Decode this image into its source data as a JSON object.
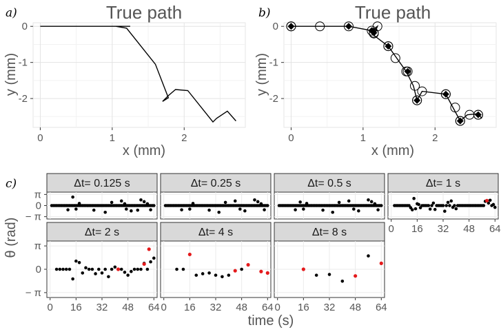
{
  "figure": {
    "tags": {
      "a": "a)",
      "b": "b)",
      "c": "c)"
    }
  },
  "chart_data": [
    {
      "type": "line",
      "title": "True path",
      "xlabel": "x (mm)",
      "ylabel": "y (mm)",
      "xlim": [
        -0.1,
        2.85
      ],
      "ylim": [
        -2.8,
        0.1
      ],
      "xticks": [
        0,
        1,
        2
      ],
      "yticks": [
        0,
        -1,
        -2
      ],
      "xtick_labels": [
        "0",
        "1",
        "2"
      ],
      "ytick_labels": [
        "0",
        "-1",
        "-2"
      ],
      "grid": true,
      "path": {
        "x": [
          0,
          1.0,
          1.25,
          1.05,
          1.2,
          1.6,
          1.78,
          1.7,
          1.78,
          1.88,
          2.05,
          2.4,
          2.45,
          2.6,
          2.72
        ],
        "y": [
          0,
          0,
          0,
          0,
          -0.05,
          -1.05,
          -1.98,
          -2.08,
          -1.92,
          -1.75,
          -1.78,
          -2.65,
          -2.55,
          -2.35,
          -2.62
        ]
      }
    },
    {
      "type": "line",
      "title": "True path",
      "xlabel": "x (mm)",
      "ylabel": "y (mm)",
      "xlim": [
        -0.1,
        2.85
      ],
      "ylim": [
        -2.8,
        0.1
      ],
      "xticks": [
        0,
        1,
        2
      ],
      "yticks": [
        0,
        -1,
        -2
      ],
      "xtick_labels": [
        "0",
        "1",
        "2"
      ],
      "ytick_labels": [
        "0",
        "-1",
        "-2"
      ],
      "grid": true,
      "path": {
        "x": [
          0,
          0.8,
          1.12,
          1.2,
          1.15,
          1.35,
          1.6,
          1.7,
          1.75,
          1.82,
          2.15,
          2.35,
          2.45,
          2.6,
          2.65
        ],
        "y": [
          0,
          0,
          -0.12,
          0,
          -0.25,
          -0.55,
          -1.25,
          -1.65,
          -2.05,
          -1.8,
          -1.88,
          -2.62,
          -2.45,
          -2.42,
          -2.55
        ]
      },
      "open_markers": {
        "x": [
          0,
          0.4,
          1.15,
          1.2,
          1.35,
          1.45,
          1.6,
          1.72,
          1.75,
          1.82,
          2.15,
          2.28,
          2.35,
          2.48,
          2.6
        ],
        "y": [
          0,
          0,
          -0.2,
          0,
          -0.55,
          -0.88,
          -1.25,
          -1.65,
          -2.05,
          -1.8,
          -1.88,
          -2.25,
          -2.62,
          -2.45,
          -2.45
        ]
      },
      "filled_markers": {
        "x": [
          0,
          0.8,
          1.12,
          1.15,
          1.35,
          1.62,
          1.75,
          2.15,
          2.35,
          2.6
        ],
        "y": [
          0,
          0,
          -0.12,
          -0.18,
          -0.55,
          -1.25,
          -2.05,
          -1.88,
          -2.62,
          -2.45
        ]
      }
    },
    {
      "type": "scatter",
      "ylabel": "θ (rad)",
      "xlabel": "time (s)",
      "xlim": [
        -2,
        66
      ],
      "ylim": [
        -3.8,
        3.8
      ],
      "xticks": [
        0,
        16,
        32,
        48,
        64
      ],
      "xtick_labels": [
        "0",
        "16",
        "32",
        "48",
        "64"
      ],
      "yticks": [
        3.14159,
        0,
        -3.14159
      ],
      "ytick_labels": [
        "π",
        "0",
        "− π"
      ],
      "facets": [
        {
          "label": "Δt= 0.125 s",
          "black": {
            "x": [
              1,
              2,
              3,
              4,
              5,
              6,
              7,
              8,
              9,
              10,
              11,
              12,
              13,
              14,
              15,
              16,
              17,
              18,
              19,
              20,
              21,
              22,
              23,
              24,
              25,
              26,
              27,
              28,
              29,
              30,
              31,
              32,
              33,
              34,
              35,
              36,
              37,
              38,
              39,
              40,
              41,
              42,
              43,
              44,
              45,
              46,
              47,
              48,
              49,
              50,
              51,
              52,
              53,
              54,
              55,
              56,
              57,
              58,
              59,
              60,
              61,
              62,
              63,
              64,
              11,
              14,
              16,
              18,
              27,
              34,
              38,
              44,
              46,
              47,
              50,
              54,
              56,
              58,
              60,
              62
            ],
            "y": [
              0,
              0,
              0,
              0,
              0,
              0,
              0,
              0,
              0,
              0,
              0,
              0,
              0,
              0,
              0,
              0,
              0,
              0,
              0,
              0,
              0,
              0,
              0,
              0,
              0,
              0,
              0,
              0,
              0,
              0,
              0,
              0,
              0,
              0,
              0,
              0,
              0,
              0,
              0,
              0,
              0,
              0,
              0,
              0,
              0,
              0,
              0,
              0,
              0,
              0,
              0,
              0,
              0,
              0,
              0,
              0,
              0,
              0,
              0,
              0,
              0,
              0,
              0,
              0,
              -1.2,
              2.4,
              -1.0,
              0.6,
              -1.3,
              -1.9,
              0.9,
              1.3,
              0.5,
              -1.0,
              -1.5,
              -1.3,
              1.6,
              1.1,
              0.5,
              -1.2
            ]
          },
          "red": {
            "x": [],
            "y": []
          }
        },
        {
          "label": "Δt= 0.25 s",
          "black": {
            "x": [
              1,
              2,
              3,
              4,
              5,
              6,
              7,
              8,
              9,
              10,
              11,
              12,
              13,
              14,
              15,
              16,
              17,
              18,
              19,
              20,
              21,
              22,
              23,
              24,
              25,
              26,
              27,
              28,
              29,
              30,
              31,
              32,
              33,
              34,
              35,
              36,
              37,
              38,
              39,
              40,
              41,
              42,
              43,
              44,
              45,
              46,
              47,
              48,
              49,
              50,
              51,
              52,
              53,
              54,
              55,
              56,
              57,
              58,
              59,
              60,
              61,
              62,
              63,
              64,
              11,
              16,
              18,
              28,
              34,
              38,
              44,
              47,
              50,
              56,
              58,
              60,
              62
            ],
            "y": [
              0,
              0,
              0,
              0,
              0,
              0,
              0,
              0,
              0,
              0,
              0,
              0,
              0,
              0,
              0,
              0,
              0,
              0,
              0,
              0,
              0,
              0,
              0,
              0,
              0,
              0,
              0,
              0,
              0,
              0,
              0,
              0,
              0,
              0,
              0,
              0,
              0,
              0,
              0,
              0,
              0,
              0,
              0,
              0,
              0,
              0,
              0,
              0,
              0,
              0,
              0,
              0,
              0,
              0,
              0,
              0,
              0,
              0,
              0,
              0,
              0,
              0,
              0,
              0,
              -1.2,
              -1.0,
              0.6,
              -1.3,
              -1.9,
              0.9,
              1.3,
              -1.0,
              -1.5,
              1.6,
              1.1,
              0.5,
              -1.2
            ]
          },
          "red": {
            "x": [],
            "y": []
          }
        },
        {
          "label": "Δt= 0.5 s",
          "black": {
            "x": [
              1,
              2,
              3,
              4,
              5,
              6,
              7,
              8,
              9,
              10,
              11,
              12,
              13,
              14,
              15,
              16,
              17,
              18,
              19,
              20,
              21,
              22,
              23,
              24,
              25,
              26,
              27,
              28,
              29,
              30,
              31,
              32,
              33,
              34,
              35,
              36,
              37,
              38,
              39,
              40,
              41,
              42,
              43,
              44,
              45,
              46,
              47,
              48,
              49,
              50,
              51,
              52,
              53,
              54,
              55,
              56,
              57,
              58,
              59,
              60,
              61,
              62,
              63,
              64,
              11,
              14,
              16,
              18,
              28,
              34,
              38,
              44,
              47,
              50,
              56,
              58,
              60,
              62
            ],
            "y": [
              0,
              0,
              0,
              0,
              0,
              0,
              0,
              0,
              0,
              0,
              0,
              0,
              0,
              0,
              0,
              0,
              0,
              0,
              0,
              0,
              0,
              0,
              0,
              0,
              0,
              0,
              0,
              0,
              0,
              0,
              0,
              0,
              0,
              0,
              0,
              0,
              0,
              0,
              0,
              0,
              0,
              0,
              0,
              0,
              0,
              0,
              0,
              0,
              0,
              0,
              0,
              0,
              0,
              0,
              0,
              0,
              0,
              0,
              0,
              0,
              0,
              0,
              0,
              0,
              -1.2,
              1.0,
              -1.0,
              0.6,
              -1.3,
              -1.9,
              0.9,
              1.3,
              -1.0,
              -1.5,
              1.6,
              1.1,
              0.5,
              -1.2
            ]
          },
          "red": {
            "x": [],
            "y": []
          }
        },
        {
          "label": "Δt= 1 s",
          "black": {
            "x": [
              2,
              3,
              4,
              5,
              6,
              7,
              8,
              9,
              10,
              11,
              12,
              13,
              14,
              15,
              16,
              17,
              18,
              19,
              20,
              21,
              22,
              23,
              24,
              25,
              26,
              27,
              28,
              29,
              30,
              31,
              32,
              33,
              34,
              35,
              36,
              37,
              38,
              39,
              40,
              41,
              42,
              43,
              44,
              45,
              46,
              47,
              48,
              49,
              50,
              51,
              52,
              53,
              54,
              55,
              56,
              57,
              58,
              60,
              61,
              62,
              63,
              64
            ],
            "y": [
              0,
              0,
              0,
              0,
              0,
              0,
              0,
              0,
              0,
              0,
              -0.6,
              -1.2,
              2.0,
              -0.9,
              0.5,
              0.3,
              -0.6,
              0,
              0,
              0,
              0,
              0,
              -1.0,
              0,
              0.7,
              -1.1,
              0,
              0,
              0,
              0,
              0,
              -1.6,
              0,
              0.9,
              0,
              1.3,
              -0.5,
              0,
              -0.9,
              0,
              0,
              0,
              0,
              0,
              0,
              0,
              0,
              0,
              0,
              0,
              0,
              0,
              0,
              0,
              0,
              0,
              1.2,
              0.7,
              1.5,
              0,
              0.3,
              -0.5
            ]
          },
          "red": {
            "x": [
              59
            ],
            "y": [
              1.4
            ]
          }
        },
        {
          "label": "Δt= 2 s",
          "black": {
            "x": [
              4,
              6,
              8,
              10,
              12,
              14,
              16,
              18,
              20,
              22,
              24,
              26,
              28,
              30,
              32,
              34,
              36,
              38,
              40,
              44,
              46,
              48,
              50,
              52,
              54,
              56,
              58,
              60,
              62,
              64
            ],
            "y": [
              0,
              0,
              0,
              0,
              0,
              -1.3,
              1.1,
              0.9,
              -0.5,
              0.2,
              0,
              0,
              -0.6,
              0,
              -0.5,
              0,
              -1.0,
              0,
              0.3,
              0,
              -0.4,
              -0.8,
              -0.3,
              0,
              0,
              0,
              0.8,
              0,
              1.0,
              1.5
            ]
          },
          "red": {
            "x": [
              42,
              58,
              61
            ],
            "y": [
              0,
              0.7,
              2.7
            ]
          }
        },
        {
          "label": "Δt= 4 s",
          "black": {
            "x": [
              8,
              12,
              20,
              24,
              28,
              32,
              36,
              40,
              48
            ],
            "y": [
              0,
              0,
              -0.8,
              -0.6,
              -0.5,
              -0.8,
              -1.0,
              -0.8,
              0
            ]
          },
          "red": {
            "x": [
              16,
              44,
              52,
              60,
              64
            ],
            "y": [
              2.0,
              -0.2,
              0.6,
              -0.3,
              -0.5
            ]
          }
        },
        {
          "label": "Δt= 8 s",
          "black": {
            "x": [
              24,
              32,
              40,
              56
            ],
            "y": [
              -0.8,
              -0.7,
              -1.6,
              1.8
            ]
          },
          "red": {
            "x": [
              16,
              48,
              64
            ],
            "y": [
              0,
              -0.9,
              0.8
            ]
          }
        }
      ]
    }
  ]
}
